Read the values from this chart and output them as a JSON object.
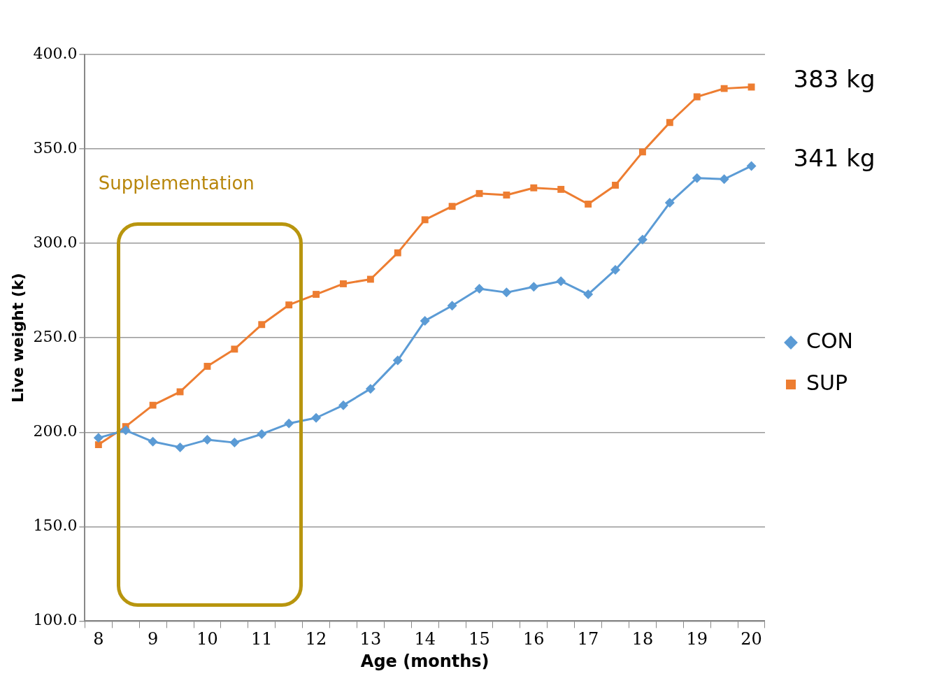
{
  "chart_data": {
    "type": "line",
    "xlabel": "Age (months)",
    "ylabel": "Live weight (k)",
    "categories": [
      "8",
      null,
      "9",
      null,
      "10",
      null,
      "11",
      null,
      "12",
      null,
      "13",
      null,
      "14",
      null,
      "15",
      null,
      "16",
      null,
      "17",
      null,
      "18",
      null,
      "19",
      null,
      "20"
    ],
    "series": [
      {
        "name": "CON",
        "color": "#5b9bd5",
        "marker": "diamond",
        "values": [
          197,
          201,
          195,
          192,
          196,
          194.5,
          199,
          204.6,
          207.6,
          214.3,
          223,
          238,
          259,
          267,
          276,
          274,
          277,
          280,
          273,
          286,
          302,
          321.5,
          334.6,
          334,
          341
        ]
      },
      {
        "name": "SUP",
        "color": "#ed7d31",
        "marker": "square",
        "values": [
          193.4,
          203,
          214.3,
          221.4,
          234.9,
          244,
          257,
          267.4,
          273,
          278.6,
          281,
          295,
          312.5,
          319.6,
          326.4,
          325.6,
          329.4,
          328.6,
          320.8,
          330.8,
          348.4,
          364,
          377.6,
          382,
          382.8
        ]
      }
    ],
    "ylim": [
      100,
      400
    ],
    "yticks": [
      {
        "value": 100,
        "label": "100.0"
      },
      {
        "value": 150,
        "label": "150.0"
      },
      {
        "value": 200,
        "label": "200.0"
      },
      {
        "value": 250,
        "label": "250.0"
      },
      {
        "value": 300,
        "label": "300.0"
      },
      {
        "value": 350,
        "label": "350.0"
      },
      {
        "value": 400,
        "label": "400.0"
      }
    ],
    "grid": "y",
    "legend": "right",
    "line_style": "solid",
    "annotations": [
      "Supplementation",
      {
        "text": "383 kg",
        "x": "20",
        "y": 383
      },
      {
        "text": "341 kg",
        "x": "20",
        "y": 341
      }
    ]
  }
}
